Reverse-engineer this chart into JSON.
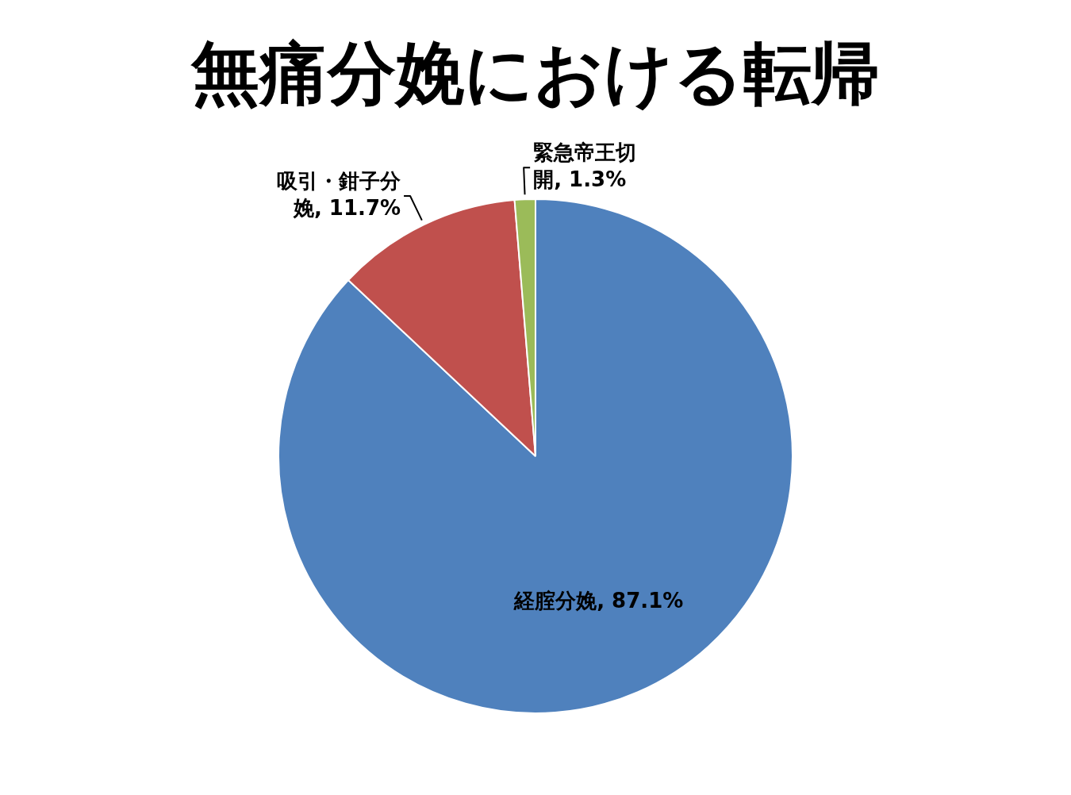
{
  "chart_data": {
    "type": "pie",
    "title": "無痛分娩における転帰",
    "categories": [
      "経腟分娩",
      "吸引・鉗子分娩",
      "緊急帝王切開"
    ],
    "values": [
      87.1,
      11.7,
      1.3
    ],
    "colors": [
      "#4f81bd",
      "#c0504d",
      "#9bbb59"
    ],
    "value_labels": [
      "87.1%",
      "11.7%",
      "1.3%"
    ],
    "legend": false
  }
}
